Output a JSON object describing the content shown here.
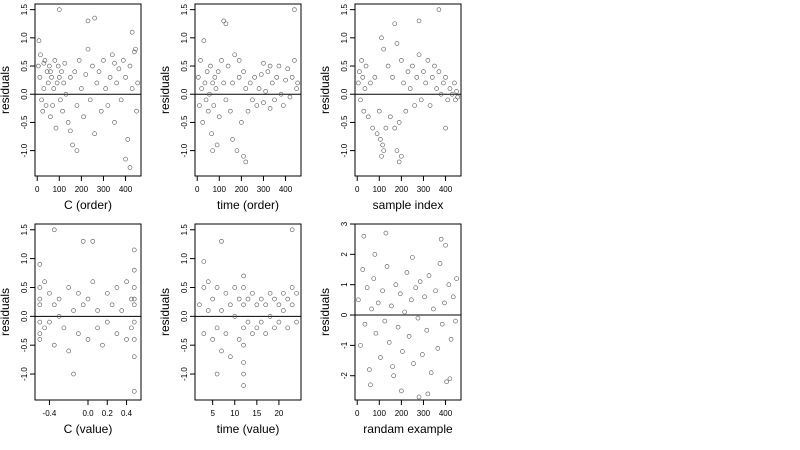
{
  "chart_data": [
    {
      "type": "scatter",
      "xlabel": "C (order)",
      "ylabel": "residuals",
      "xlim": [
        -10,
        470
      ],
      "ylim": [
        -1.45,
        1.6
      ],
      "xticks": [
        0,
        100,
        200,
        300,
        400
      ],
      "yticks": [
        -1.0,
        -0.5,
        0.0,
        0.5,
        1.0,
        1.5
      ],
      "xtick_labels": [
        "0",
        "100",
        "200",
        "300",
        "400"
      ],
      "ytick_labels": [
        "-1.0",
        "-0.5",
        "0.0",
        "0.5",
        "1.0",
        "1.5"
      ],
      "hline": 0,
      "x": [
        5,
        8,
        12,
        15,
        20,
        25,
        30,
        35,
        40,
        45,
        50,
        55,
        60,
        65,
        70,
        75,
        80,
        85,
        90,
        95,
        100,
        105,
        110,
        115,
        120,
        125,
        130,
        140,
        150,
        160,
        170,
        180,
        190,
        200,
        210,
        220,
        230,
        240,
        250,
        260,
        270,
        280,
        290,
        300,
        310,
        320,
        330,
        340,
        350,
        360,
        370,
        380,
        390,
        400,
        410,
        420,
        430,
        440,
        450,
        455,
        100,
        180,
        230,
        260,
        400,
        420,
        430,
        445,
        30,
        60,
        150,
        350
      ],
      "y": [
        0.5,
        0.95,
        0.3,
        0.7,
        -0.1,
        -0.3,
        0.1,
        0.6,
        -0.2,
        0.4,
        0.2,
        0.5,
        -0.4,
        0.3,
        -0.2,
        0.1,
        0.6,
        -0.6,
        0.2,
        0.5,
        0.3,
        -0.1,
        0.4,
        -0.3,
        0.2,
        0.55,
        0.0,
        -0.5,
        0.3,
        -0.9,
        0.4,
        -0.2,
        0.6,
        0.1,
        -0.4,
        0.35,
        0.8,
        -0.1,
        0.5,
        -0.7,
        0.2,
        0.4,
        -0.3,
        0.6,
        0.1,
        -0.2,
        0.3,
        0.7,
        -0.5,
        0.2,
        0.45,
        -0.1,
        0.6,
        0.3,
        -0.8,
        0.5,
        0.1,
        0.75,
        -0.3,
        0.2,
        1.5,
        -1.0,
        1.3,
        1.35,
        -1.15,
        -1.3,
        1.1,
        0.8,
        0.55,
        0.4,
        -0.65,
        0.55
      ]
    },
    {
      "type": "scatter",
      "xlabel": "time (order)",
      "ylabel": "residuals",
      "xlim": [
        -10,
        470
      ],
      "ylim": [
        -1.45,
        1.6
      ],
      "xticks": [
        0,
        100,
        200,
        300,
        400
      ],
      "yticks": [
        -1.0,
        -0.5,
        0.0,
        0.5,
        1.0,
        1.5
      ],
      "xtick_labels": [
        "0",
        "100",
        "200",
        "300",
        "400"
      ],
      "ytick_labels": [
        "-1.0",
        "-0.5",
        "0.0",
        "0.5",
        "1.0",
        "1.5"
      ],
      "hline": 0,
      "x": [
        5,
        10,
        15,
        20,
        25,
        30,
        35,
        40,
        45,
        50,
        55,
        60,
        65,
        70,
        75,
        80,
        85,
        90,
        95,
        100,
        110,
        120,
        130,
        140,
        150,
        160,
        170,
        180,
        190,
        200,
        210,
        220,
        230,
        240,
        250,
        260,
        270,
        280,
        290,
        300,
        310,
        320,
        330,
        340,
        350,
        360,
        370,
        380,
        390,
        400,
        410,
        420,
        430,
        440,
        450,
        455,
        120,
        130,
        160,
        210,
        220,
        440,
        70,
        190,
        300,
        330
      ],
      "y": [
        0.3,
        -0.2,
        0.6,
        0.1,
        -0.5,
        0.95,
        0.2,
        -0.1,
        0.4,
        -0.3,
        0.0,
        0.5,
        -0.7,
        0.2,
        -0.2,
        0.3,
        0.1,
        -0.9,
        0.4,
        -0.4,
        0.6,
        0.2,
        -0.1,
        0.5,
        -0.3,
        0.2,
        0.7,
        -1.0,
        0.3,
        -0.5,
        0.4,
        0.1,
        -0.3,
        0.2,
        -0.1,
        0.3,
        -0.2,
        0.1,
        0.35,
        -0.15,
        0.05,
        0.4,
        -0.25,
        0.2,
        -0.1,
        0.3,
        0.5,
        0.0,
        -0.2,
        0.25,
        0.45,
        -0.05,
        0.3,
        0.6,
        0.1,
        0.2,
        1.3,
        1.25,
        -0.8,
        -1.1,
        -1.2,
        1.5,
        -1.0,
        0.6,
        0.55,
        0.5
      ]
    },
    {
      "type": "scatter",
      "xlabel": "sample index",
      "ylabel": "residuals",
      "xlim": [
        -10,
        470
      ],
      "ylim": [
        -1.45,
        1.6
      ],
      "xticks": [
        0,
        100,
        200,
        300,
        400
      ],
      "yticks": [
        -1.0,
        -0.5,
        0.0,
        0.5,
        1.0,
        1.5
      ],
      "xtick_labels": [
        "0",
        "100",
        "200",
        "300",
        "400"
      ],
      "ytick_labels": [
        "-1.0",
        "-0.5",
        "0.0",
        "0.5",
        "1.0",
        "1.5"
      ],
      "hline": 0,
      "x": [
        5,
        10,
        15,
        20,
        25,
        30,
        35,
        40,
        50,
        60,
        70,
        80,
        90,
        100,
        105,
        110,
        115,
        120,
        130,
        140,
        150,
        160,
        170,
        180,
        190,
        200,
        210,
        220,
        230,
        240,
        250,
        260,
        270,
        280,
        290,
        300,
        310,
        320,
        330,
        340,
        350,
        360,
        370,
        380,
        390,
        400,
        410,
        420,
        430,
        440,
        445,
        450,
        455,
        110,
        120,
        170,
        180,
        190,
        200,
        280,
        370,
        400
      ],
      "y": [
        0.2,
        0.4,
        -0.1,
        0.6,
        0.3,
        -0.3,
        0.1,
        0.5,
        -0.4,
        0.2,
        -0.6,
        0.3,
        -0.7,
        -0.3,
        -0.8,
        -1.1,
        -0.9,
        -1.0,
        -0.6,
        0.5,
        -0.4,
        0.3,
        -0.6,
        -1.0,
        -0.5,
        0.6,
        0.2,
        -0.3,
        0.4,
        0.1,
        0.5,
        -0.2,
        0.3,
        0.7,
        -0.1,
        0.4,
        0.2,
        0.6,
        -0.2,
        0.3,
        0.5,
        0.1,
        0.4,
        0.0,
        0.2,
        0.3,
        -0.1,
        0.1,
        0.0,
        0.2,
        -0.1,
        0.05,
        -0.05,
        1.0,
        0.8,
        1.25,
        0.9,
        -1.2,
        -1.1,
        1.3,
        1.5,
        -0.6
      ]
    },
    {
      "type": "scatter",
      "xlabel": "C (value)",
      "ylabel": "residuals",
      "xlim": [
        -0.55,
        0.55
      ],
      "ylim": [
        -1.45,
        1.6
      ],
      "xticks": [
        -0.4,
        0.0,
        0.2,
        0.4
      ],
      "yticks": [
        -1.0,
        -0.5,
        0.0,
        0.5,
        1.0,
        1.5
      ],
      "xtick_labels": [
        "-0.4",
        "0.0",
        "0.2",
        "0.4"
      ],
      "ytick_labels": [
        "-1.0",
        "-0.5",
        "0.0",
        "0.5",
        "1.0",
        "1.5"
      ],
      "hline": 0,
      "x": [
        -0.5,
        -0.5,
        -0.5,
        -0.5,
        -0.5,
        -0.5,
        -0.5,
        -0.45,
        -0.45,
        -0.4,
        -0.4,
        -0.35,
        -0.35,
        -0.3,
        -0.3,
        -0.25,
        -0.2,
        -0.2,
        -0.15,
        -0.1,
        -0.1,
        -0.05,
        0.0,
        0.0,
        0.05,
        0.1,
        0.1,
        0.15,
        0.2,
        0.2,
        0.25,
        0.3,
        0.3,
        0.35,
        0.4,
        0.4,
        0.45,
        0.45,
        0.48,
        0.48,
        0.48,
        0.48,
        0.48,
        0.48,
        0.48,
        -0.35,
        -0.05,
        0.05,
        0.48,
        0.48,
        -0.15
      ],
      "y": [
        0.9,
        0.5,
        0.2,
        -0.1,
        -0.3,
        0.3,
        -0.4,
        0.6,
        -0.2,
        0.4,
        -0.1,
        0.2,
        -0.5,
        0.3,
        0.0,
        -0.2,
        0.5,
        -0.6,
        0.1,
        0.4,
        -0.3,
        0.2,
        -0.4,
        0.3,
        0.6,
        -0.2,
        0.1,
        -0.5,
        0.4,
        -0.1,
        0.2,
        -0.3,
        0.5,
        0.1,
        -0.4,
        0.6,
        0.3,
        -0.2,
        0.8,
        0.5,
        0.2,
        -0.1,
        -0.4,
        -0.7,
        0.3,
        1.5,
        1.3,
        1.3,
        1.15,
        -1.3,
        -1.0
      ]
    },
    {
      "type": "scatter",
      "xlabel": "time (value)",
      "ylabel": "residuals",
      "xlim": [
        1,
        25
      ],
      "ylim": [
        -1.45,
        1.6
      ],
      "xticks": [
        5,
        10,
        15,
        20
      ],
      "yticks": [
        -1.0,
        -0.5,
        0.0,
        0.5,
        1.0,
        1.5
      ],
      "xtick_labels": [
        "5",
        "10",
        "15",
        "20"
      ],
      "ytick_labels": [
        "-1.0",
        "-0.5",
        "0.0",
        "0.5",
        "1.0",
        "1.5"
      ],
      "hline": 0,
      "x": [
        2,
        3,
        3,
        4,
        4,
        5,
        5,
        6,
        6,
        7,
        7,
        8,
        8,
        9,
        9,
        10,
        10,
        11,
        11,
        12,
        12,
        12,
        12,
        12,
        12,
        13,
        13,
        14,
        14,
        15,
        15,
        16,
        16,
        17,
        17,
        18,
        18,
        19,
        19,
        20,
        20,
        21,
        21,
        22,
        22,
        23,
        23,
        24,
        24,
        3,
        6,
        7,
        12,
        12,
        23
      ],
      "y": [
        0.2,
        0.5,
        -0.3,
        0.1,
        0.6,
        -0.4,
        0.3,
        -0.2,
        0.5,
        -0.6,
        0.1,
        0.4,
        -0.3,
        0.2,
        -0.7,
        0.5,
        0.0,
        -0.4,
        0.3,
        0.5,
        0.2,
        -0.2,
        -0.5,
        -0.8,
        -1.0,
        0.3,
        -0.1,
        0.4,
        -0.3,
        0.2,
        -0.2,
        0.3,
        -0.1,
        0.2,
        -0.3,
        0.4,
        0.0,
        0.3,
        -0.2,
        0.2,
        -0.1,
        0.4,
        0.1,
        0.3,
        -0.2,
        0.5,
        0.2,
        0.4,
        -0.1,
        0.95,
        -1.0,
        1.3,
        -1.2,
        0.7,
        1.5
      ]
    },
    {
      "type": "scatter",
      "xlabel": "randam example",
      "ylabel": "residuals",
      "xlim": [
        -10,
        470
      ],
      "ylim": [
        -2.8,
        3.0
      ],
      "xticks": [
        0,
        100,
        200,
        300,
        400
      ],
      "yticks": [
        -2,
        -1,
        0,
        1,
        2,
        3
      ],
      "xtick_labels": [
        "0",
        "100",
        "200",
        "300",
        "400"
      ],
      "ytick_labels": [
        "-2",
        "-1",
        "0",
        "1",
        "2",
        "3"
      ],
      "hline": 0,
      "x": [
        5,
        15,
        25,
        35,
        45,
        55,
        65,
        75,
        85,
        95,
        105,
        115,
        125,
        135,
        145,
        155,
        165,
        175,
        185,
        195,
        205,
        215,
        225,
        235,
        245,
        255,
        265,
        275,
        285,
        295,
        305,
        315,
        325,
        335,
        345,
        355,
        365,
        375,
        385,
        395,
        405,
        415,
        425,
        435,
        445,
        450,
        30,
        60,
        130,
        200,
        250,
        320,
        380,
        420,
        80,
        160,
        280,
        400
      ],
      "y": [
        0.5,
        -1.0,
        1.5,
        -0.3,
        0.9,
        -1.8,
        0.2,
        1.2,
        -0.6,
        0.4,
        -1.4,
        0.8,
        -0.2,
        1.6,
        -0.9,
        0.3,
        -2.0,
        1.0,
        -0.4,
        0.7,
        -1.2,
        0.1,
        1.4,
        -0.7,
        0.5,
        -1.6,
        0.9,
        -0.1,
        1.1,
        -1.3,
        0.6,
        -0.5,
        1.3,
        -1.9,
        0.2,
        0.8,
        -1.1,
        1.7,
        -0.3,
        0.4,
        -2.2,
        1.0,
        -0.8,
        0.6,
        -0.2,
        1.2,
        2.6,
        -2.3,
        2.7,
        -2.5,
        1.9,
        -2.6,
        2.5,
        -2.1,
        2.0,
        -1.7,
        -2.7,
        2.3
      ]
    }
  ]
}
